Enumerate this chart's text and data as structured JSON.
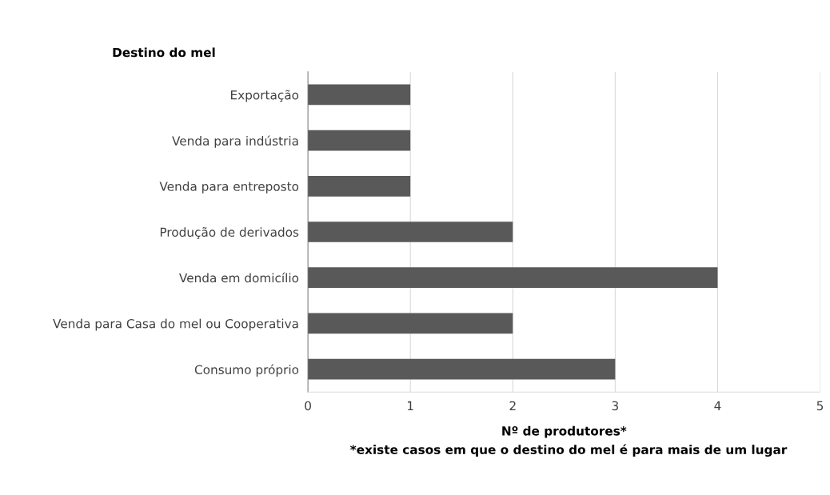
{
  "chart_data": {
    "type": "bar",
    "orientation": "horizontal",
    "title": "Destino do mel",
    "categories": [
      "Exportação",
      "Venda para indústria",
      "Venda para entreposto",
      "Produção de derivados",
      "Venda em domicílio",
      "Venda para Casa do mel ou Cooperativa",
      "Consumo próprio"
    ],
    "values": [
      1,
      1,
      1,
      2,
      4,
      2,
      3
    ],
    "color": "#595959",
    "xlim": [
      0,
      5
    ],
    "xticks": [
      0,
      1,
      2,
      3,
      4,
      5
    ],
    "xlabel": "Nº de produtores*",
    "annotations": [
      "*existe casos em que o destino do mel é para mais de um lugar"
    ],
    "grid": "x",
    "legend": false
  }
}
